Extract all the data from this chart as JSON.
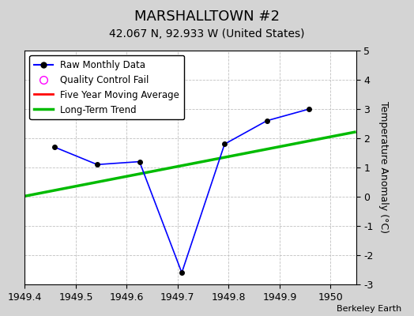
{
  "title": "MARSHALLTOWN #2",
  "subtitle": "42.067 N, 92.933 W (United States)",
  "ylabel": "Temperature Anomaly (°C)",
  "attribution": "Berkeley Earth",
  "xlim": [
    1949.4,
    1950.05
  ],
  "ylim": [
    -3,
    5
  ],
  "yticks": [
    -3,
    -2,
    -1,
    0,
    1,
    2,
    3,
    4,
    5
  ],
  "xticks": [
    1949.4,
    1949.5,
    1949.6,
    1949.7,
    1949.8,
    1949.9,
    1950.0
  ],
  "raw_x": [
    1949.458,
    1949.542,
    1949.625,
    1949.708,
    1949.792,
    1949.875,
    1949.958
  ],
  "raw_y": [
    1.7,
    1.1,
    1.2,
    -2.6,
    1.8,
    2.6,
    3.0
  ],
  "trend_x": [
    1949.4,
    1950.05
  ],
  "trend_y": [
    0.02,
    2.22
  ],
  "raw_color": "#0000ff",
  "trend_color": "#00bb00",
  "mavg_color": "#ff0000",
  "qc_color": "#ff00ff",
  "background_color": "#d4d4d4",
  "plot_background": "#ffffff",
  "grid_color": "#c0c0c0",
  "title_fontsize": 13,
  "subtitle_fontsize": 10,
  "tick_fontsize": 9,
  "ylabel_fontsize": 9
}
